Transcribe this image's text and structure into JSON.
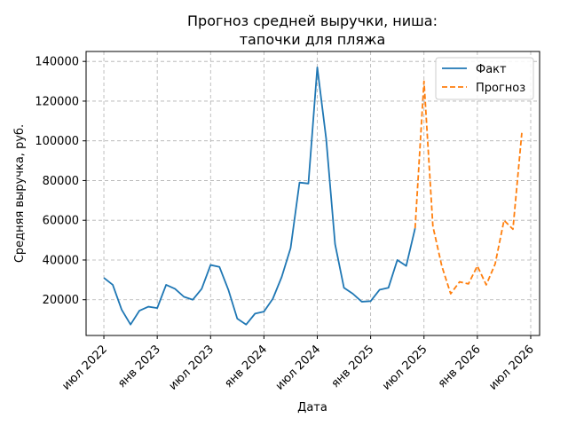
{
  "chart_data": {
    "type": "line",
    "title_lines": [
      "Прогноз средней выручки, ниша:",
      "тапочки для пляжа"
    ],
    "xlabel": "Дата",
    "ylabel": "Средняя выручка, руб.",
    "x_ticks": [
      {
        "date": "2022-07",
        "label": "июл 2022"
      },
      {
        "date": "2023-01",
        "label": "янв 2023"
      },
      {
        "date": "2023-07",
        "label": "июл 2023"
      },
      {
        "date": "2024-01",
        "label": "янв 2024"
      },
      {
        "date": "2024-07",
        "label": "июл 2024"
      },
      {
        "date": "2025-01",
        "label": "янв 2025"
      },
      {
        "date": "2025-07",
        "label": "июл 2025"
      },
      {
        "date": "2026-01",
        "label": "янв 2026"
      },
      {
        "date": "2026-07",
        "label": "июл 2026"
      }
    ],
    "y_ticks": [
      20000,
      40000,
      60000,
      80000,
      100000,
      120000,
      140000
    ],
    "xlim": [
      "2022-05",
      "2026-08"
    ],
    "ylim": [
      2000,
      145000
    ],
    "grid": true,
    "legend_position": "top-right",
    "series": [
      {
        "name": "Факт",
        "style": "solid",
        "color": "#1f77b4",
        "x": [
          "2022-07",
          "2022-08",
          "2022-09",
          "2022-10",
          "2022-11",
          "2022-12",
          "2023-01",
          "2023-02",
          "2023-03",
          "2023-04",
          "2023-05",
          "2023-06",
          "2023-07",
          "2023-08",
          "2023-09",
          "2023-10",
          "2023-11",
          "2023-12",
          "2024-01",
          "2024-02",
          "2024-03",
          "2024-04",
          "2024-05",
          "2024-06",
          "2024-07",
          "2024-08",
          "2024-09",
          "2024-10",
          "2024-11",
          "2024-12",
          "2025-01",
          "2025-02",
          "2025-03",
          "2025-04",
          "2025-05",
          "2025-06"
        ],
        "y": [
          31000,
          27500,
          15000,
          7500,
          14500,
          16500,
          15800,
          27500,
          25500,
          21500,
          20000,
          25500,
          37500,
          36500,
          25000,
          10500,
          7500,
          13000,
          14000,
          20500,
          31500,
          46000,
          79000,
          78500,
          137000,
          101000,
          48000,
          26000,
          23000,
          19000,
          19300,
          25000,
          26000,
          40000,
          37000,
          56000
        ]
      },
      {
        "name": "Прогноз",
        "style": "dashed",
        "color": "#ff7f0e",
        "x": [
          "2025-06",
          "2025-07",
          "2025-08",
          "2025-09",
          "2025-10",
          "2025-11",
          "2025-12",
          "2026-01",
          "2026-02",
          "2026-03",
          "2026-04",
          "2026-05",
          "2026-06"
        ],
        "y": [
          56000,
          130000,
          57000,
          37000,
          23000,
          29000,
          28000,
          37000,
          27500,
          38000,
          60000,
          55500,
          104000
        ]
      }
    ]
  }
}
